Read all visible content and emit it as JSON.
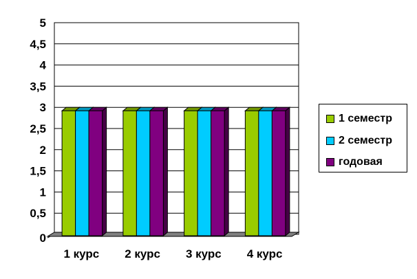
{
  "chart_data": {
    "type": "bar",
    "categories": [
      "1 курс",
      "2 курс",
      "3 курс",
      "4 курс"
    ],
    "series": [
      {
        "name": "1 семестр",
        "values": [
          3,
          3,
          3,
          3
        ],
        "color": "#99cc00"
      },
      {
        "name": "2 семестр",
        "values": [
          3,
          3,
          3,
          3
        ],
        "color": "#00ccff"
      },
      {
        "name": "годовая",
        "values": [
          3,
          3,
          3,
          3
        ],
        "color": "#800080"
      }
    ],
    "y_ticks": [
      "0",
      "0,5",
      "1",
      "1,5",
      "2",
      "2,5",
      "3",
      "3,5",
      "4",
      "4,5",
      "5"
    ],
    "ylim": [
      0,
      5
    ],
    "grid": true,
    "legend_position": "right"
  }
}
